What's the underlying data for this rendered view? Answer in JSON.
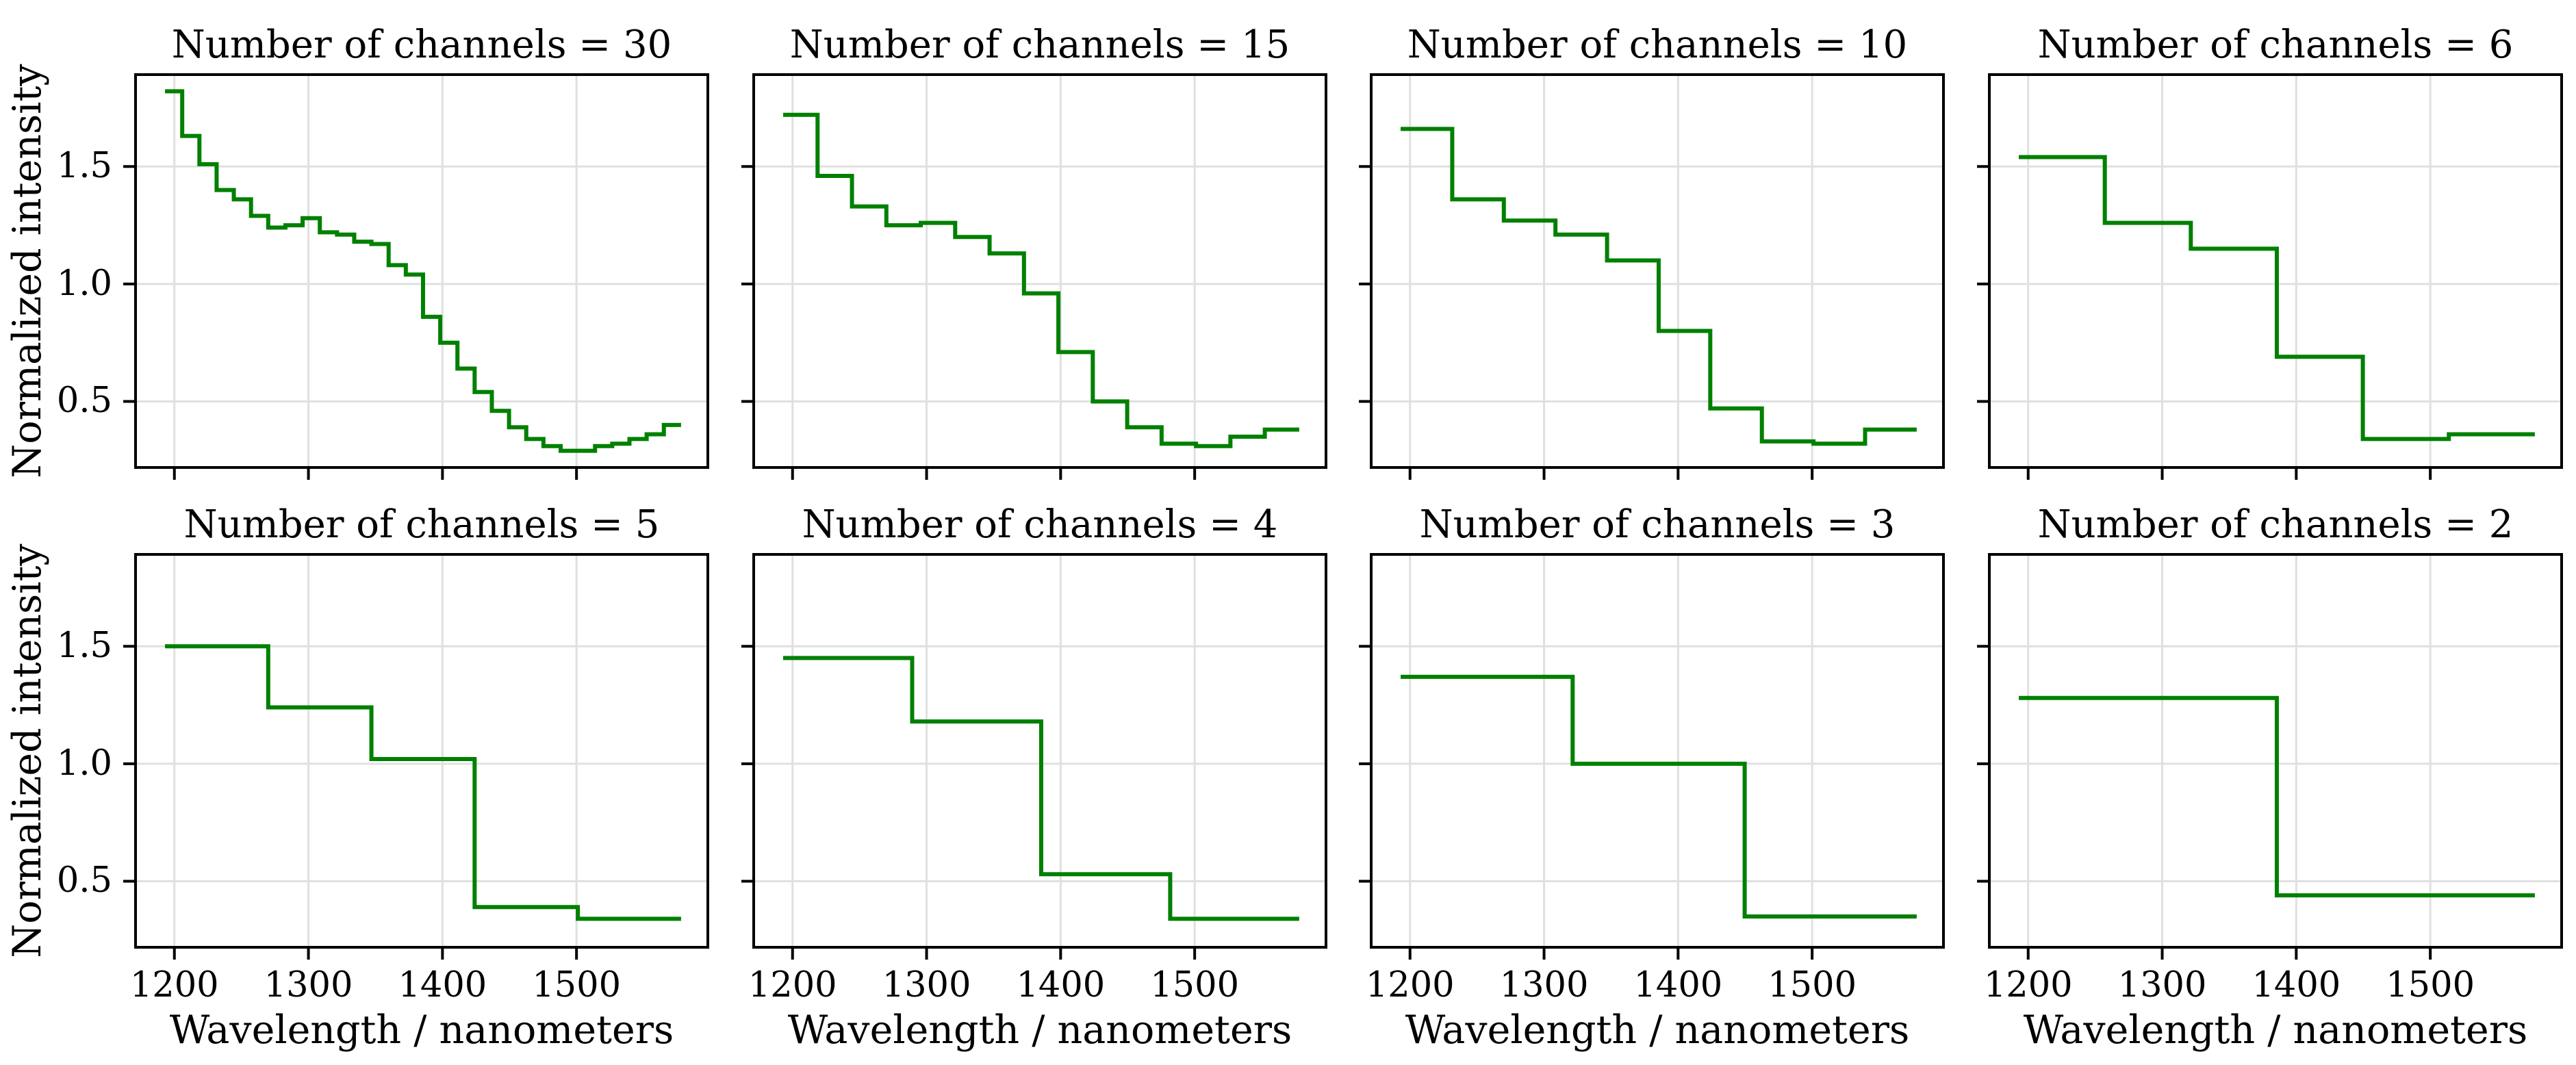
{
  "figure": {
    "background": "#ffffff",
    "line_color": "#008000",
    "grid_color": "#e0e0e0",
    "spine_color": "#000000",
    "text_color": "#000000"
  },
  "axes": {
    "xlabel": "Wavelength / nanometers",
    "ylabel": "Normalized intensity",
    "xlim": [
      1170,
      1599
    ],
    "ylim": [
      0.213,
      1.897
    ],
    "xticks": [
      1200,
      1300,
      1400,
      1500
    ],
    "xtick_labels": [
      "1200",
      "1300",
      "1400",
      "1500"
    ],
    "yticks": [
      0.5,
      1.0,
      1.5
    ],
    "ytick_labels": [
      "0.5",
      "1.0",
      "1.5"
    ],
    "grid": "on",
    "x_data_start_nm": 1193,
    "x_data_end_nm": 1578
  },
  "chart_data": [
    {
      "type": "line",
      "step": true,
      "title": "Number of channels = 30",
      "n_channels": 30,
      "values": [
        1.82,
        1.63,
        1.51,
        1.4,
        1.36,
        1.29,
        1.24,
        1.25,
        1.28,
        1.22,
        1.21,
        1.18,
        1.17,
        1.08,
        1.04,
        0.86,
        0.75,
        0.64,
        0.54,
        0.46,
        0.39,
        0.34,
        0.31,
        0.29,
        0.29,
        0.31,
        0.32,
        0.34,
        0.36,
        0.4
      ],
      "show_y_tick_labels": true,
      "show_x_tick_labels": false,
      "show_ylabel": true,
      "show_xlabel": false
    },
    {
      "type": "line",
      "step": true,
      "title": "Number of channels = 15",
      "n_channels": 15,
      "values": [
        1.72,
        1.46,
        1.33,
        1.25,
        1.26,
        1.2,
        1.13,
        0.96,
        0.71,
        0.5,
        0.39,
        0.32,
        0.31,
        0.35,
        0.38
      ],
      "show_y_tick_labels": false,
      "show_x_tick_labels": false,
      "show_ylabel": false,
      "show_xlabel": false
    },
    {
      "type": "line",
      "step": true,
      "title": "Number of channels = 10",
      "n_channels": 10,
      "values": [
        1.66,
        1.36,
        1.27,
        1.21,
        1.1,
        0.8,
        0.47,
        0.33,
        0.32,
        0.38
      ],
      "show_y_tick_labels": false,
      "show_x_tick_labels": false,
      "show_ylabel": false,
      "show_xlabel": false
    },
    {
      "type": "line",
      "step": true,
      "title": "Number of channels = 6",
      "n_channels": 6,
      "values": [
        1.54,
        1.26,
        1.15,
        0.69,
        0.34,
        0.36
      ],
      "show_y_tick_labels": false,
      "show_x_tick_labels": false,
      "show_ylabel": false,
      "show_xlabel": false
    },
    {
      "type": "line",
      "step": true,
      "title": "Number of channels = 5",
      "n_channels": 5,
      "values": [
        1.5,
        1.24,
        1.02,
        0.39,
        0.34
      ],
      "show_y_tick_labels": true,
      "show_x_tick_labels": true,
      "show_ylabel": true,
      "show_xlabel": true
    },
    {
      "type": "line",
      "step": true,
      "title": "Number of channels = 4",
      "n_channels": 4,
      "values": [
        1.45,
        1.18,
        0.53,
        0.34
      ],
      "show_y_tick_labels": false,
      "show_x_tick_labels": true,
      "show_ylabel": false,
      "show_xlabel": true
    },
    {
      "type": "line",
      "step": true,
      "title": "Number of channels = 3",
      "n_channels": 3,
      "values": [
        1.37,
        1.0,
        0.35
      ],
      "show_y_tick_labels": false,
      "show_x_tick_labels": true,
      "show_ylabel": false,
      "show_xlabel": true
    },
    {
      "type": "line",
      "step": true,
      "title": "Number of channels = 2",
      "n_channels": 2,
      "values": [
        1.28,
        0.44
      ],
      "show_y_tick_labels": false,
      "show_x_tick_labels": true,
      "show_ylabel": false,
      "show_xlabel": true
    }
  ]
}
